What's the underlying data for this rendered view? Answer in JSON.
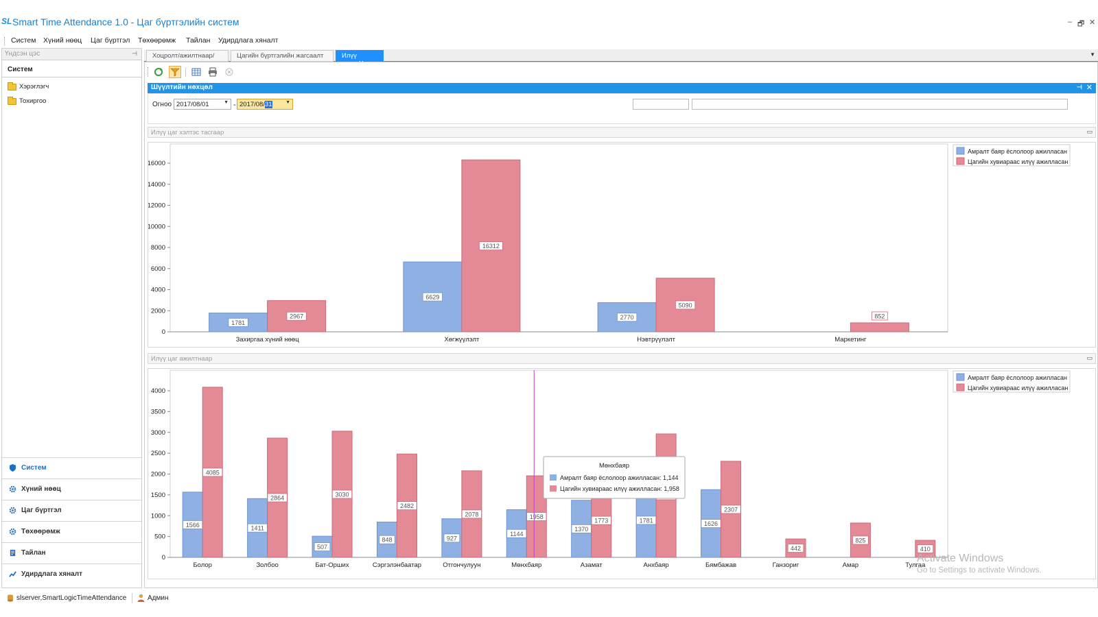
{
  "app": {
    "logo": "SL",
    "title": "Smart Time Attendance 1.0 - Цаг бүртгэлийн систем",
    "window_controls": [
      "–",
      "🗗",
      "✕"
    ]
  },
  "menu": [
    "Систем",
    "Хүний нөөц",
    "Цаг бүртгэл",
    "Төхөөрөмж",
    "Тайлан",
    "Удирдлага хяналт"
  ],
  "sidebar": {
    "header": "Үндсэн цэс",
    "section": "Систем",
    "tree": [
      "Хэрэглэгч",
      "Тохиргоо"
    ],
    "nav": [
      "Систем",
      "Хүний нөөц",
      "Цаг бүртгэл",
      "Төхөөрөмж",
      "Тайлан",
      "Удирдлага хяналт"
    ]
  },
  "tabs": [
    {
      "label": "Хоцролт/ажилтнаар/"
    },
    {
      "label": "Цагийн бүртгэлийн жагсаалт"
    },
    {
      "label": "Илүү цаг"
    }
  ],
  "filter": {
    "title": "Шүүлтийн нөхцөл",
    "date_label": "Огноо",
    "date_from": "2017/08/01",
    "date_separator": "-",
    "date_to_prefix": "2017/08/",
    "date_to_selected": "31"
  },
  "status": {
    "server": "slserver,SmartLogicTimeAttendance",
    "user": "Админ"
  },
  "colors": {
    "blue": "#8fb0e3",
    "red": "#e48a96",
    "accent": "#1e90ff"
  },
  "chart_data": [
    {
      "type": "bar",
      "title": "Илүү цаг хэлтэс тасгаар",
      "categories": [
        "Захиргаа хүний нөөц",
        "Хөгжүүлэлт",
        "Нэвтрүүлэлт",
        "Маркетинг"
      ],
      "series": [
        {
          "name": "Амралт баяр ёслолоор ажилласан",
          "values": [
            1781,
            6629,
            2770,
            0
          ]
        },
        {
          "name": "Цагийн хувиараас илүү ажилласан",
          "values": [
            2967,
            16312,
            5090,
            852
          ]
        }
      ],
      "ylim": [
        0,
        16000
      ],
      "yticks": [
        0,
        2000,
        4000,
        6000,
        8000,
        10000,
        12000,
        14000,
        16000
      ],
      "legend": "top-right"
    },
    {
      "type": "bar",
      "title": "Илүү цаг ажилтнаар",
      "categories": [
        "Болор",
        "Золбоо",
        "Бат-Орших",
        "Сэргэлэнбаатар",
        "Отгончулуун",
        "Мөнхбаяр",
        "Азамат",
        "Анхбаяр",
        "Бямбажав",
        "Ганзориг",
        "Амар",
        "Тулгаа"
      ],
      "series": [
        {
          "name": "Амралт баяр ёслолоор ажилласан",
          "values": [
            1566,
            1411,
            507,
            848,
            927,
            1144,
            1370,
            1781,
            1626,
            0,
            0,
            0
          ]
        },
        {
          "name": "Цагийн хувиараас илүү ажилласан",
          "values": [
            4085,
            2864,
            3030,
            2482,
            2078,
            1958,
            1773,
            2964,
            2307,
            442,
            825,
            410
          ]
        }
      ],
      "ylim": [
        0,
        4000
      ],
      "yticks": [
        0,
        500,
        1000,
        1500,
        2000,
        2500,
        3000,
        3500,
        4000
      ],
      "legend": "top-right",
      "tooltip": {
        "title": "Мөнхбаяр",
        "rows": [
          "Амралт баяр ёслолоор ажилласан: 1,144",
          "Цагийн хувиараас илүү ажилласан: 1,958"
        ]
      }
    }
  ],
  "watermark": {
    "title": "Activate Windows",
    "subtitle": "Go to Settings to activate Windows."
  }
}
